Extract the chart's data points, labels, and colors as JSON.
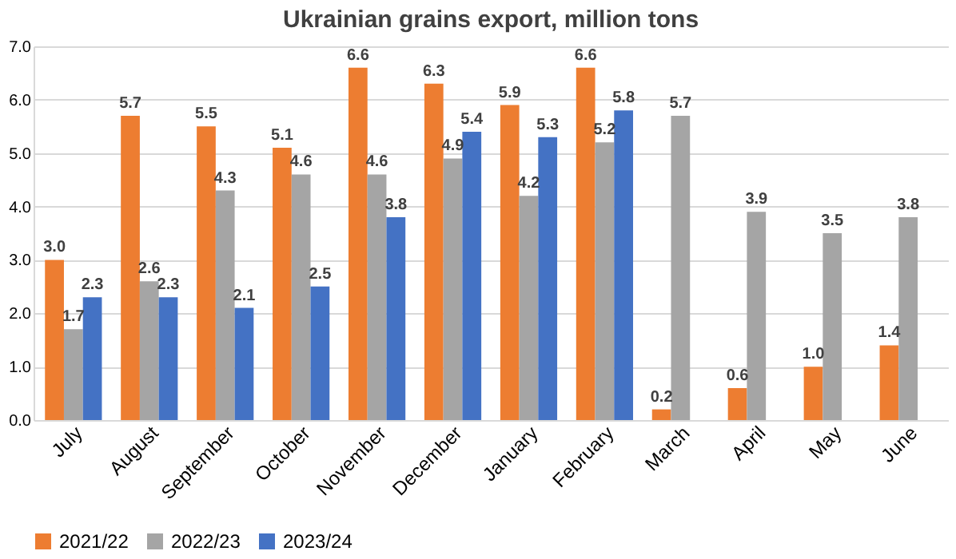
{
  "chart_data": {
    "type": "bar",
    "title": "Ukrainian grains export, million tons",
    "categories": [
      "July",
      "August",
      "September",
      "October",
      "November",
      "December",
      "January",
      "February",
      "March",
      "April",
      "May",
      "June"
    ],
    "series": [
      {
        "name": "2021/22",
        "color": "#ed7d31",
        "values": [
          3.0,
          5.7,
          5.5,
          5.1,
          6.6,
          6.3,
          5.9,
          6.6,
          0.2,
          0.6,
          1.0,
          1.4
        ],
        "value_labels": [
          "3.0",
          "5.7",
          "5.5",
          "5.1",
          "6.6",
          "6.3",
          "5.9",
          "6.6",
          "0.2",
          "0.6",
          "1.0",
          "1.4"
        ]
      },
      {
        "name": "2022/23",
        "color": "#a5a5a5",
        "values": [
          1.7,
          2.6,
          4.3,
          4.6,
          4.6,
          4.9,
          4.2,
          5.2,
          5.7,
          3.9,
          3.5,
          3.8
        ],
        "value_labels": [
          "1.7",
          "2.6",
          "4.3",
          "4.6",
          "4.6",
          "4.9",
          "4.2",
          "5.2",
          "5.7",
          "3.9",
          "3.5",
          "3.8"
        ]
      },
      {
        "name": "2023/24",
        "color": "#4472c4",
        "values": [
          2.3,
          2.3,
          2.1,
          2.5,
          3.8,
          5.4,
          5.3,
          5.8,
          null,
          null,
          null,
          null
        ],
        "value_labels": [
          "2.3",
          "2.3",
          "2.1",
          "2.5",
          "3.8",
          "5.4",
          "5.3",
          "5.8",
          null,
          null,
          null,
          null
        ]
      }
    ],
    "ylim": [
      0,
      7
    ],
    "yticks": [
      {
        "value": 0,
        "label": "0.0"
      },
      {
        "value": 1,
        "label": "1.0"
      },
      {
        "value": 2,
        "label": "2.0"
      },
      {
        "value": 3,
        "label": "3.0"
      },
      {
        "value": 4,
        "label": "4.0"
      },
      {
        "value": 5,
        "label": "5.0"
      },
      {
        "value": 6,
        "label": "6.0"
      },
      {
        "value": 7,
        "label": "7.0"
      }
    ],
    "grid": "y",
    "legend": "bottom"
  }
}
